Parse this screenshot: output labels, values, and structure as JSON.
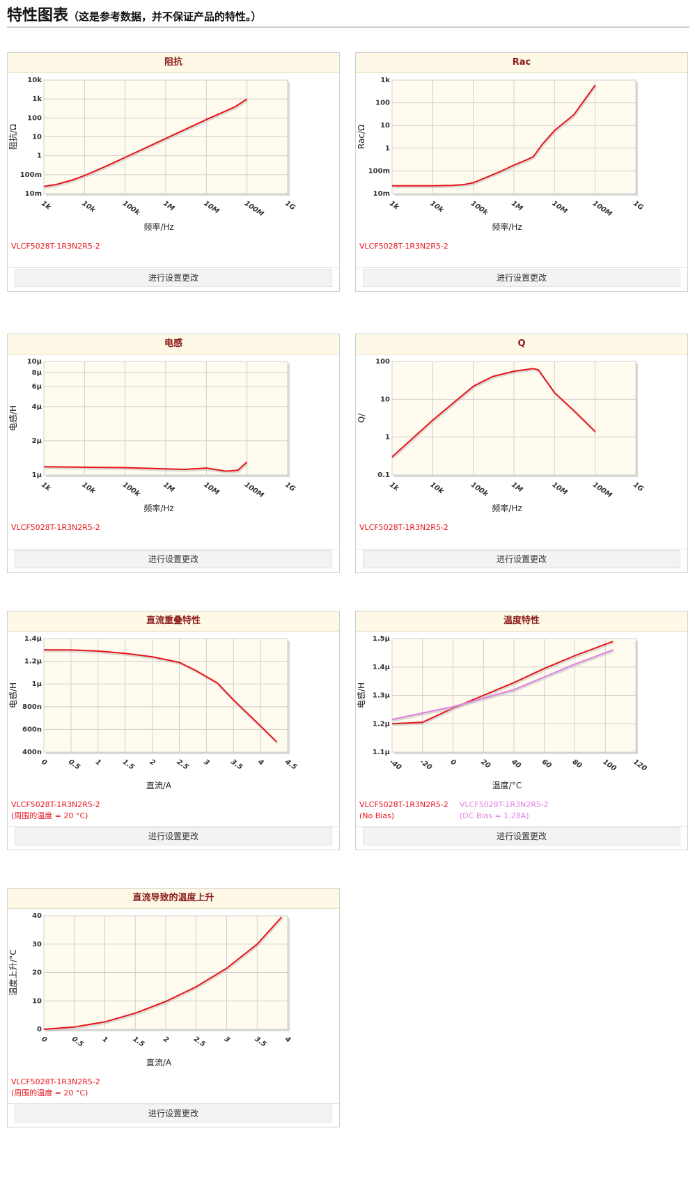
{
  "page": {
    "title": "特性图表",
    "subtitle": "（这是参考数据，并不保证产品的特性。）"
  },
  "settings_button_label": "进行设置更改",
  "colors": {
    "series_primary": "#e8141c",
    "series_secondary": "#e07fe0",
    "plot_bg": "#fffbee",
    "header_text": "#8b1a1a"
  },
  "panels": [
    {
      "title": "阻抗",
      "legend": [
        {
          "text": "VLCF5028T-1R3N2R5-2",
          "color": "#e8141c"
        }
      ]
    },
    {
      "title": "Rac",
      "legend": [
        {
          "text": "VLCF5028T-1R3N2R5-2",
          "color": "#e8141c"
        }
      ]
    },
    {
      "title": "电感",
      "legend": [
        {
          "text": "VLCF5028T-1R3N2R5-2",
          "color": "#e8141c"
        }
      ]
    },
    {
      "title": "Q",
      "legend": [
        {
          "text": "VLCF5028T-1R3N2R5-2",
          "color": "#e8141c"
        }
      ]
    },
    {
      "title": "直流重叠特性",
      "legend": [
        {
          "text": "VLCF5028T-1R3N2R5-2(周围的温度 = 20 °C)",
          "color": "#e8141c"
        }
      ]
    },
    {
      "title": "温度特性",
      "legend": [
        {
          "text": "VLCF5028T-1R3N2R5-2(No Bias)",
          "color": "#e8141c"
        },
        {
          "text": "VLCF5028T-1R3N2R5-2(DC Bias = 1.28A)",
          "color": "#e07fe0"
        }
      ]
    },
    {
      "title": "直流导致的温度上升",
      "legend": [
        {
          "text": "VLCF5028T-1R3N2R5-2(周围的温度 = 20 °C)",
          "color": "#e8141c"
        }
      ]
    }
  ],
  "chart_data": [
    {
      "type": "line",
      "title": "阻抗",
      "xlabel": "频率/Hz",
      "ylabel": "阻抗/Ω",
      "xscale": "log",
      "yscale": "log",
      "xlim": [
        1000,
        1000000000
      ],
      "ylim": [
        0.01,
        10000
      ],
      "xticks": [
        1000,
        10000,
        100000,
        1000000,
        10000000,
        100000000,
        1000000000
      ],
      "xtick_labels": [
        "1k",
        "10k",
        "100k",
        "1M",
        "10M",
        "100M",
        "1G"
      ],
      "yticks": [
        0.01,
        0.1,
        1,
        10,
        100,
        1000,
        10000
      ],
      "ytick_labels": [
        "10m",
        "100m",
        "1",
        "10",
        "100",
        "1k",
        "10k"
      ],
      "series": [
        {
          "color": "#e8141c",
          "x": [
            1000,
            2000,
            5000,
            10000,
            20000,
            50000,
            100000,
            1000000,
            10000000,
            50000000,
            100000000
          ],
          "y": [
            0.024,
            0.03,
            0.052,
            0.09,
            0.17,
            0.41,
            0.82,
            8.2,
            82,
            380,
            1000
          ]
        }
      ]
    },
    {
      "type": "line",
      "title": "Rac",
      "xlabel": "频率/Hz",
      "ylabel": "Rac/Ω",
      "xscale": "log",
      "yscale": "log",
      "xlim": [
        1000,
        1000000000
      ],
      "ylim": [
        0.01,
        1000
      ],
      "xticks": [
        1000,
        10000,
        100000,
        1000000,
        10000000,
        100000000,
        1000000000
      ],
      "xtick_labels": [
        "1k",
        "10k",
        "100k",
        "1M",
        "10M",
        "100M",
        "1G"
      ],
      "yticks": [
        0.01,
        0.1,
        1,
        10,
        100,
        1000
      ],
      "ytick_labels": [
        "10m",
        "100m",
        "1",
        "10",
        "100",
        "1k"
      ],
      "series": [
        {
          "color": "#e8141c",
          "x": [
            1000,
            10000,
            30000,
            60000,
            100000,
            200000,
            500000,
            1000000,
            2000000,
            3000000,
            5000000,
            10000000,
            30000000,
            100000000
          ],
          "y": [
            0.022,
            0.022,
            0.023,
            0.025,
            0.03,
            0.05,
            0.1,
            0.18,
            0.3,
            0.42,
            1.5,
            6,
            30,
            600
          ]
        }
      ]
    },
    {
      "type": "line",
      "title": "电感",
      "xlabel": "频率/Hz",
      "ylabel": "电感/H",
      "xscale": "log",
      "yscale": "log",
      "xlim": [
        1000,
        1000000000
      ],
      "ylim": [
        1,
        10
      ],
      "xticks": [
        1000,
        10000,
        100000,
        1000000,
        10000000,
        100000000,
        1000000000
      ],
      "xtick_labels": [
        "1k",
        "10k",
        "100k",
        "1M",
        "10M",
        "100M",
        "1G"
      ],
      "yticks": [
        1,
        2,
        4,
        6,
        8,
        10
      ],
      "ytick_labels": [
        "1μ",
        "2μ",
        "4μ",
        "6μ",
        "8μ",
        "10μ"
      ],
      "series": [
        {
          "color": "#e8141c",
          "x": [
            1000,
            10000,
            100000,
            1000000,
            3000000,
            10000000,
            30000000,
            60000000,
            100000000
          ],
          "y": [
            1.18,
            1.17,
            1.16,
            1.13,
            1.12,
            1.15,
            1.08,
            1.1,
            1.3
          ]
        }
      ]
    },
    {
      "type": "line",
      "title": "Q",
      "xlabel": "频率/Hz",
      "ylabel": "Q/",
      "xscale": "log",
      "yscale": "log",
      "xlim": [
        1000,
        1000000000
      ],
      "ylim": [
        0.1,
        100
      ],
      "xticks": [
        1000,
        10000,
        100000,
        1000000,
        10000000,
        100000000,
        1000000000
      ],
      "xtick_labels": [
        "1k",
        "10k",
        "100k",
        "1M",
        "10M",
        "100M",
        "1G"
      ],
      "yticks": [
        0.1,
        1,
        10,
        100
      ],
      "ytick_labels": [
        "0.1",
        "1",
        "10",
        "100"
      ],
      "series": [
        {
          "color": "#e8141c",
          "x": [
            1000,
            10000,
            100000,
            300000,
            1000000,
            3000000,
            4000000,
            10000000,
            30000000,
            100000000
          ],
          "y": [
            0.3,
            2.8,
            22,
            40,
            55,
            65,
            60,
            15,
            5,
            1.4
          ]
        }
      ]
    },
    {
      "type": "line",
      "title": "直流重叠特性",
      "xlabel": "直流/A",
      "ylabel": "电感/H",
      "xlim": [
        0,
        4.5
      ],
      "ylim": [
        0.4,
        1.4
      ],
      "xticks": [
        0,
        0.5,
        1,
        1.5,
        2,
        2.5,
        3,
        3.5,
        4,
        4.5
      ],
      "xtick_labels": [
        "0",
        "0.5",
        "1",
        "1.5",
        "2",
        "2.5",
        "3",
        "3.5",
        "4",
        "4.5"
      ],
      "yticks": [
        0.4,
        0.6,
        0.8,
        1.0,
        1.2,
        1.4
      ],
      "ytick_labels": [
        "400n",
        "600n",
        "800n",
        "1μ",
        "1.2μ",
        "1.4μ"
      ],
      "series": [
        {
          "color": "#e8141c",
          "x": [
            0,
            0.5,
            1,
            1.5,
            2,
            2.5,
            2.8,
            3.2,
            3.5,
            4,
            4.3
          ],
          "y": [
            1.3,
            1.3,
            1.29,
            1.27,
            1.24,
            1.19,
            1.12,
            1.01,
            0.86,
            0.63,
            0.49
          ]
        }
      ]
    },
    {
      "type": "line",
      "title": "温度特性",
      "xlabel": "温度/°C",
      "ylabel": "电感/H",
      "xlim": [
        -40,
        120
      ],
      "ylim": [
        1.1,
        1.5
      ],
      "xticks": [
        -40,
        -20,
        0,
        20,
        40,
        60,
        80,
        100,
        120
      ],
      "xtick_labels": [
        "-40",
        "-20",
        "0",
        "20",
        "40",
        "60",
        "80",
        "100",
        "120"
      ],
      "yticks": [
        1.1,
        1.2,
        1.3,
        1.4,
        1.5
      ],
      "ytick_labels": [
        "1.1μ",
        "1.2μ",
        "1.3μ",
        "1.4μ",
        "1.5μ"
      ],
      "series": [
        {
          "color": "#e8141c",
          "x": [
            -40,
            -20,
            0,
            20,
            40,
            60,
            80,
            105
          ],
          "y": [
            1.2,
            1.205,
            1.255,
            1.3,
            1.345,
            1.395,
            1.44,
            1.49
          ]
        },
        {
          "color": "#e07fe0",
          "x": [
            -40,
            0,
            20,
            40,
            60,
            80,
            105
          ],
          "y": [
            1.215,
            1.26,
            1.29,
            1.32,
            1.365,
            1.41,
            1.46
          ]
        }
      ]
    },
    {
      "type": "line",
      "title": "直流导致的温度上升",
      "xlabel": "直流/A",
      "ylabel": "温度上升/°C",
      "xlim": [
        0,
        4
      ],
      "ylim": [
        0,
        40
      ],
      "xticks": [
        0,
        0.5,
        1,
        1.5,
        2,
        2.5,
        3,
        3.5,
        4
      ],
      "xtick_labels": [
        "0",
        "0.5",
        "1",
        "1.5",
        "2",
        "2.5",
        "3",
        "3.5",
        "4"
      ],
      "yticks": [
        0,
        10,
        20,
        30,
        40
      ],
      "ytick_labels": [
        "0",
        "10",
        "20",
        "30",
        "40"
      ],
      "series": [
        {
          "color": "#e8141c",
          "x": [
            0,
            0.5,
            1,
            1.5,
            2,
            2.5,
            3,
            3.5,
            3.9
          ],
          "y": [
            0,
            0.8,
            2.6,
            5.7,
            9.8,
            15,
            21.5,
            30,
            39.5
          ]
        }
      ]
    }
  ]
}
